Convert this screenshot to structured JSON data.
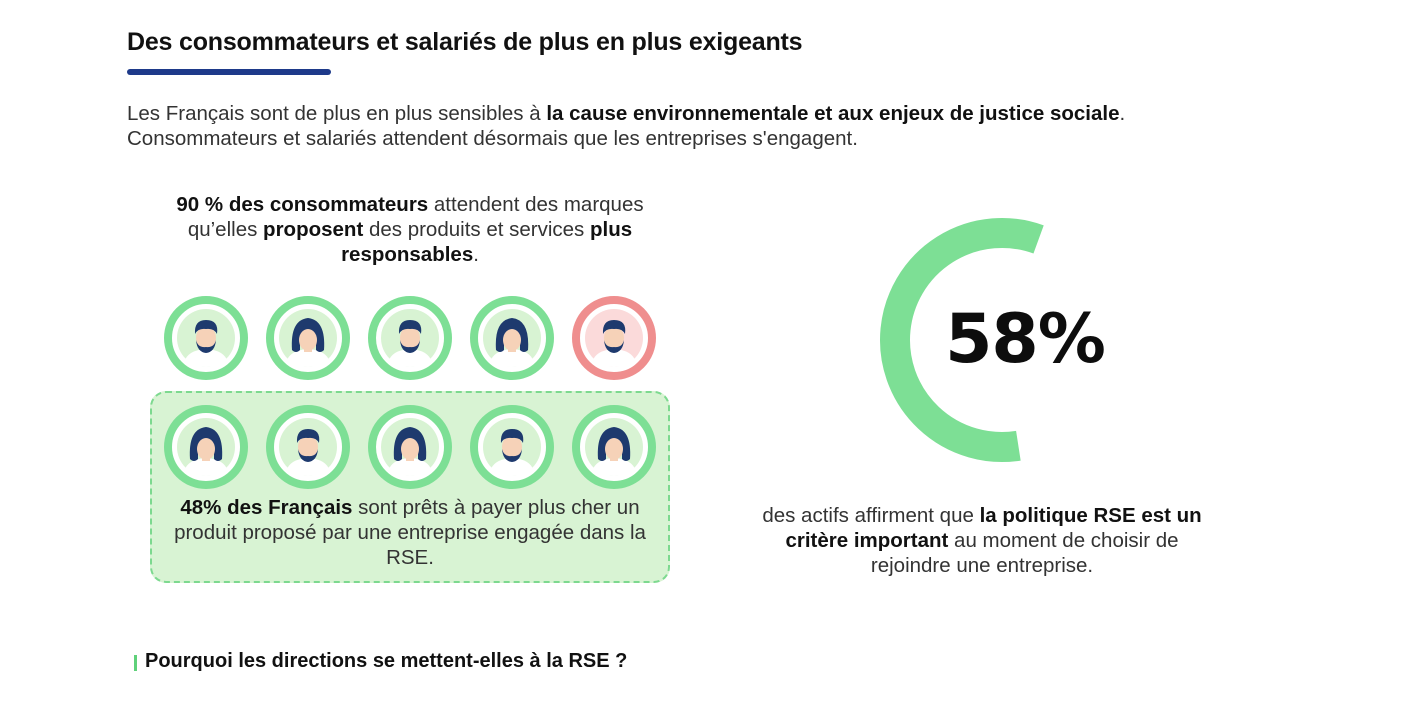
{
  "header": {
    "title": "Des consommateurs et salariés de plus en plus exigeants"
  },
  "intro": {
    "line1_a": "Les Français sont de plus en plus sensibles à ",
    "line1_b": "la cause environnementale et aux enjeux de justice sociale",
    "line1_c": ".",
    "line2": "Consommateurs et salariés attendent désormais que les entreprises s'engagent."
  },
  "stat90": {
    "p1": "90 % des consommateurs",
    "p2": " attendent des marques qu’elles ",
    "p3": "proposent",
    "p4": " des produits et services ",
    "p5": "plus responsables",
    "p6": "."
  },
  "people_row1": [
    {
      "gender": "male-bearded",
      "status": "green"
    },
    {
      "gender": "female",
      "status": "green"
    },
    {
      "gender": "male-bearded",
      "status": "green"
    },
    {
      "gender": "female",
      "status": "green"
    },
    {
      "gender": "male-bearded",
      "status": "red"
    }
  ],
  "people_row2": [
    {
      "gender": "female",
      "status": "green"
    },
    {
      "gender": "male-bearded",
      "status": "green"
    },
    {
      "gender": "female",
      "status": "green"
    },
    {
      "gender": "male-bearded",
      "status": "green"
    },
    {
      "gender": "female",
      "status": "green"
    }
  ],
  "stat48": {
    "p1": "48% des Français",
    "p2": " sont prêts à payer plus cher un produit proposé par une entreprise engagée dans la RSE."
  },
  "stat58": {
    "value": 58,
    "value_label": "58%",
    "p1": "des actifs affirment que ",
    "p2": "la politique RSE est un critère important",
    "p3": " au moment de choisir de rejoindre une entreprise."
  },
  "footer": {
    "subtitle": "Pourquoi les directions se mettent-elles à la RSE ?"
  },
  "colors": {
    "accent_navy": "#1e3a8a",
    "green_ring": "#7ddf95",
    "green_light": "#d8f3d3",
    "red_ring": "#ef8e8e",
    "red_light": "#fbdada",
    "hair": "#1e3a6e",
    "skin": "#f6d2b8",
    "shirt": "#ffffff"
  }
}
